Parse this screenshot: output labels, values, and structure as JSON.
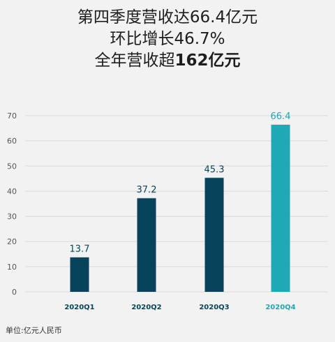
{
  "headline": {
    "line1": "第四季度营收达66.4亿元",
    "line2": "环比增长46.7%",
    "line3_prefix": "全年营收超",
    "line3_bold": "162亿元"
  },
  "unit_note": "单位:亿元人民币",
  "colors": {
    "bar": "#07445c",
    "bar_highlight": "#1fa9b5",
    "highlight_text": "#1fa9b5",
    "grid": "#d9d9d9",
    "axis_text": "#555555",
    "label_text": "#07445c"
  },
  "chart_data": {
    "type": "bar",
    "categories": [
      "2020Q1",
      "2020Q2",
      "2020Q3",
      "2020Q4"
    ],
    "values": [
      13.7,
      37.2,
      45.3,
      66.4
    ],
    "data_labels": [
      "13.7",
      "37.2",
      "45.3",
      "66.4"
    ],
    "highlight_index": 3,
    "ylim": [
      0,
      70
    ],
    "yticks": [
      "0",
      "10",
      "20",
      "30",
      "40",
      "50",
      "60",
      "70"
    ],
    "grid": true,
    "xlabel": "",
    "ylabel": ""
  }
}
